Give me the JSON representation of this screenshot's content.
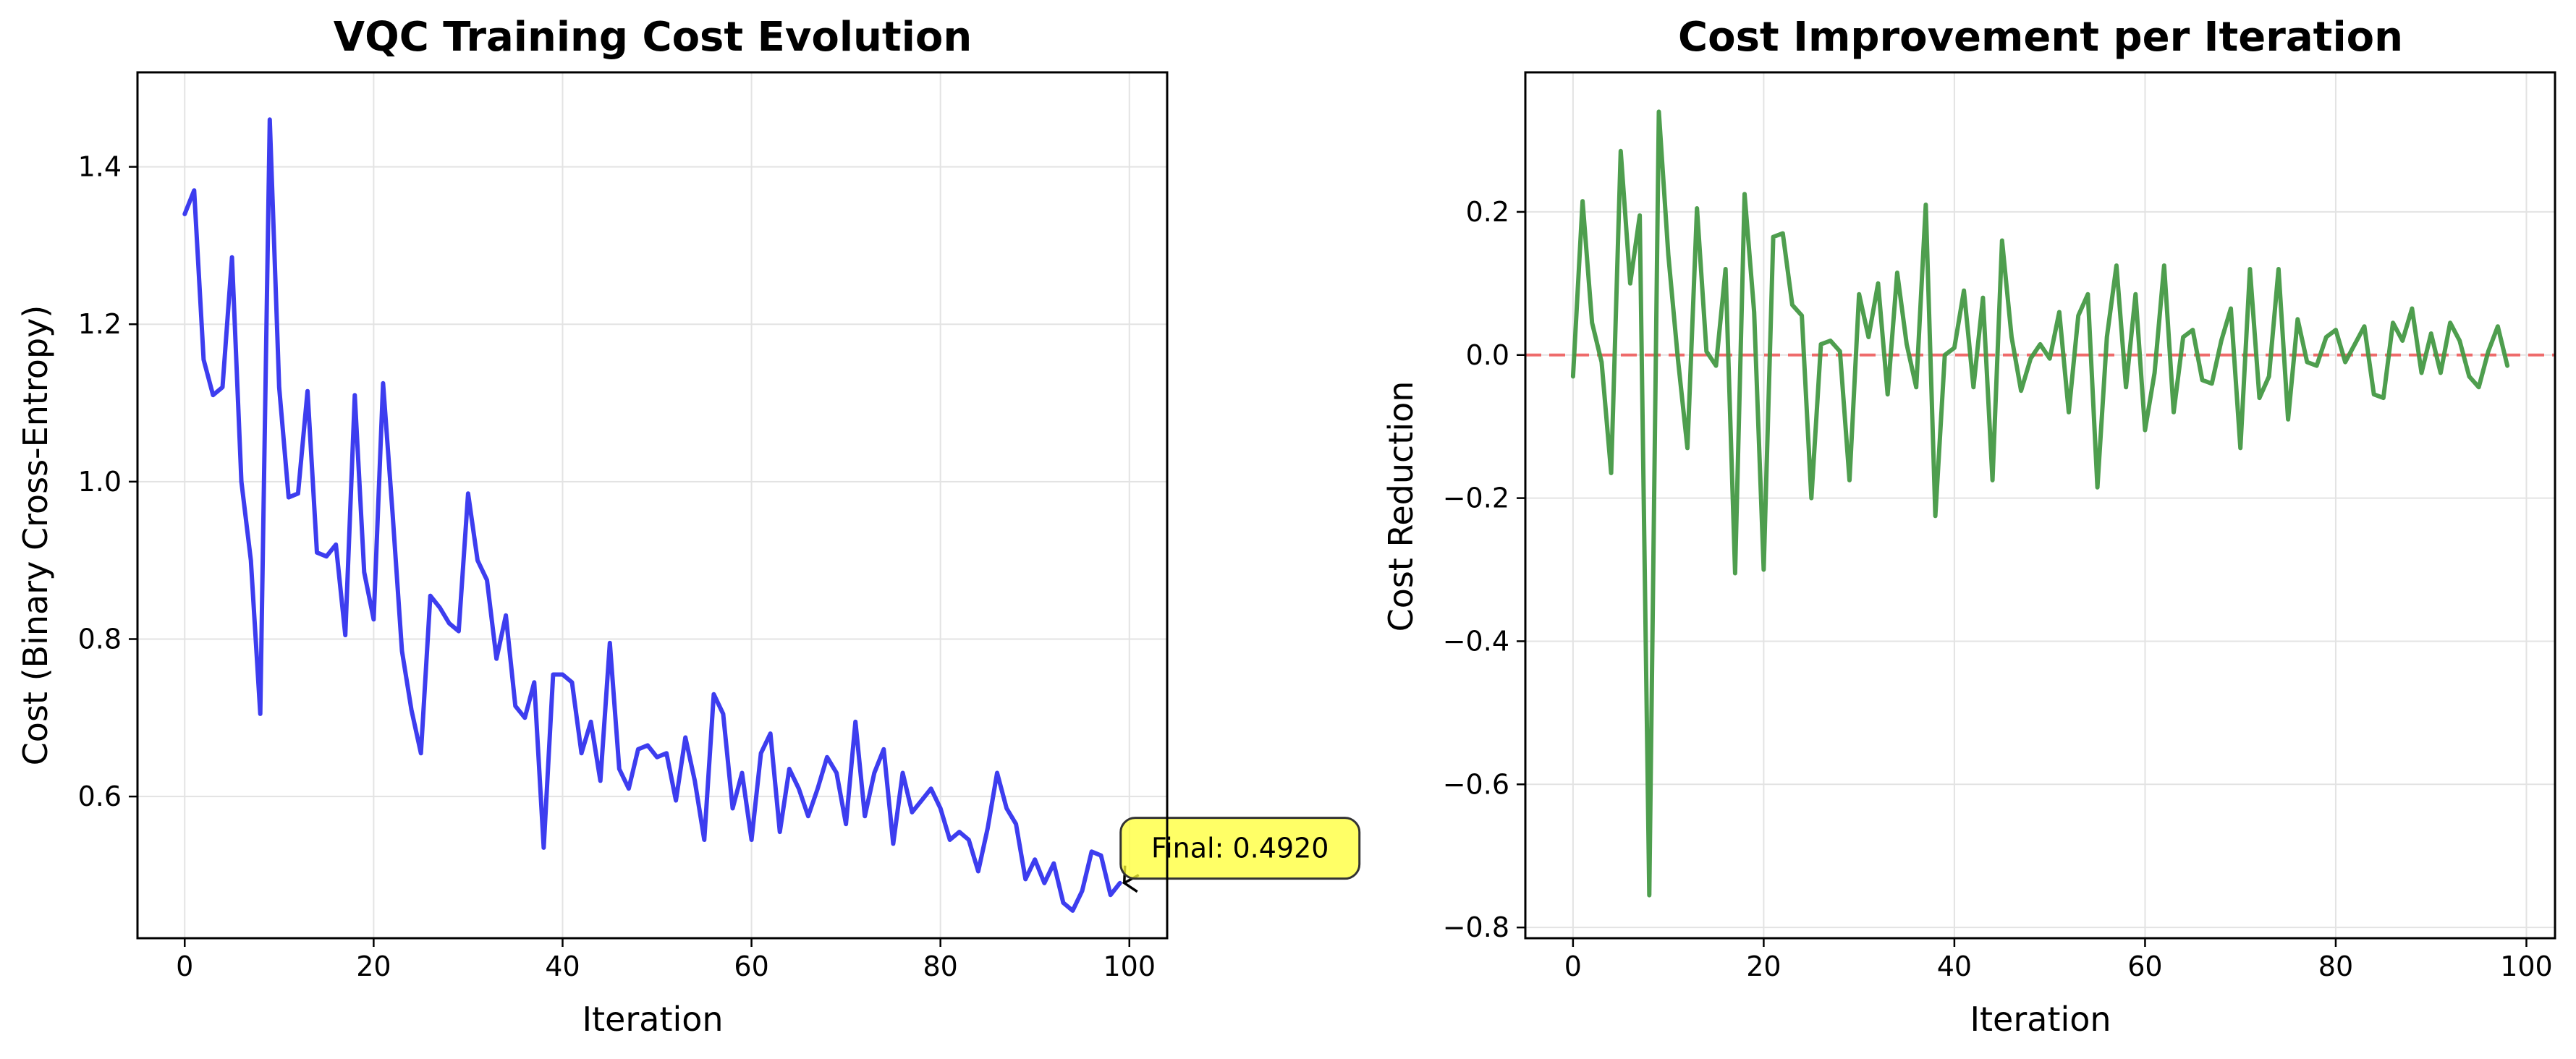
{
  "chart_data": [
    {
      "type": "line",
      "title": "VQC Training Cost Evolution",
      "xlabel": "Iteration",
      "ylabel": "Cost (Binary Cross-Entropy)",
      "xlim": [
        -5,
        104
      ],
      "ylim": [
        0.42,
        1.52
      ],
      "xticks": [
        0,
        20,
        40,
        60,
        80,
        100
      ],
      "yticks": [
        0.6,
        0.8,
        1.0,
        1.2,
        1.4
      ],
      "xtick_labels": [
        "0",
        "20",
        "40",
        "60",
        "80",
        "100"
      ],
      "ytick_labels": [
        "0.6",
        "0.8",
        "1.0",
        "1.2",
        "1.4"
      ],
      "grid": true,
      "series": [
        {
          "color": "#3333ee",
          "x": [
            0,
            1,
            2,
            3,
            4,
            5,
            6,
            7,
            8,
            9,
            10,
            11,
            12,
            13,
            14,
            15,
            16,
            17,
            18,
            19,
            20,
            21,
            22,
            23,
            24,
            25,
            26,
            27,
            28,
            29,
            30,
            31,
            32,
            33,
            34,
            35,
            36,
            37,
            38,
            39,
            40,
            41,
            42,
            43,
            44,
            45,
            46,
            47,
            48,
            49,
            50,
            51,
            52,
            53,
            54,
            55,
            56,
            57,
            58,
            59,
            60,
            61,
            62,
            63,
            64,
            65,
            66,
            67,
            68,
            69,
            70,
            71,
            72,
            73,
            74,
            75,
            76,
            77,
            78,
            79,
            80,
            81,
            82,
            83,
            84,
            85,
            86,
            87,
            88,
            89,
            90,
            91,
            92,
            93,
            94,
            95,
            96,
            97,
            98,
            99
          ],
          "values": [
            1.34,
            1.37,
            1.155,
            1.11,
            1.12,
            1.285,
            1.0,
            0.9,
            0.705,
            1.46,
            1.12,
            0.98,
            0.985,
            1.115,
            0.91,
            0.905,
            0.92,
            0.805,
            1.11,
            0.885,
            0.825,
            1.125,
            0.96,
            0.785,
            0.71,
            0.655,
            0.855,
            0.84,
            0.82,
            0.81,
            0.985,
            0.9,
            0.875,
            0.775,
            0.83,
            0.715,
            0.7,
            0.745,
            0.535,
            0.755,
            0.755,
            0.745,
            0.655,
            0.695,
            0.62,
            0.795,
            0.635,
            0.61,
            0.66,
            0.665,
            0.65,
            0.655,
            0.595,
            0.675,
            0.62,
            0.545,
            0.73,
            0.705,
            0.585,
            0.63,
            0.545,
            0.655,
            0.68,
            0.555,
            0.635,
            0.61,
            0.575,
            0.61,
            0.65,
            0.63,
            0.565,
            0.695,
            0.575,
            0.63,
            0.66,
            0.54,
            0.63,
            0.58,
            0.595,
            0.61,
            0.585,
            0.545,
            0.555,
            0.545,
            0.505,
            0.56,
            0.63,
            0.585,
            0.565,
            0.495,
            0.52,
            0.49,
            0.515,
            0.465,
            0.455,
            0.48,
            0.53,
            0.525,
            0.475,
            0.49
          ]
        }
      ],
      "annotation": {
        "text": "Final: 0.4920",
        "x": 99,
        "y": 0.492,
        "box_color": "#ffff33"
      }
    },
    {
      "type": "line",
      "title": "Cost Improvement per Iteration",
      "xlabel": "Iteration",
      "ylabel": "Cost Reduction",
      "xlim": [
        -5,
        103
      ],
      "ylim": [
        -0.815,
        0.395
      ],
      "xticks": [
        0,
        20,
        40,
        60,
        80,
        100
      ],
      "yticks": [
        -0.8,
        -0.6,
        -0.4,
        -0.2,
        0.0,
        0.2
      ],
      "xtick_labels": [
        "0",
        "20",
        "40",
        "60",
        "80",
        "100"
      ],
      "ytick_labels": [
        "−0.8",
        "−0.6",
        "−0.4",
        "−0.2",
        "0.0",
        "0.2"
      ],
      "grid": true,
      "reference_line": {
        "y": 0,
        "color": "#ee5555",
        "style": "dashed"
      },
      "series": [
        {
          "color": "#449944",
          "x": [
            0,
            1,
            2,
            3,
            4,
            5,
            6,
            7,
            8,
            9,
            10,
            11,
            12,
            13,
            14,
            15,
            16,
            17,
            18,
            19,
            20,
            21,
            22,
            23,
            24,
            25,
            26,
            27,
            28,
            29,
            30,
            31,
            32,
            33,
            34,
            35,
            36,
            37,
            38,
            39,
            40,
            41,
            42,
            43,
            44,
            45,
            46,
            47,
            48,
            49,
            50,
            51,
            52,
            53,
            54,
            55,
            56,
            57,
            58,
            59,
            60,
            61,
            62,
            63,
            64,
            65,
            66,
            67,
            68,
            69,
            70,
            71,
            72,
            73,
            74,
            75,
            76,
            77,
            78,
            79,
            80,
            81,
            82,
            83,
            84,
            85,
            86,
            87,
            88,
            89,
            90,
            91,
            92,
            93,
            94,
            95,
            96,
            97,
            98
          ],
          "values": [
            -0.03,
            0.215,
            0.045,
            -0.01,
            -0.165,
            0.285,
            0.1,
            0.195,
            -0.755,
            0.34,
            0.14,
            -0.005,
            -0.13,
            0.205,
            0.005,
            -0.015,
            0.12,
            -0.305,
            0.225,
            0.06,
            -0.3,
            0.165,
            0.17,
            0.07,
            0.055,
            -0.2,
            0.015,
            0.02,
            0.005,
            -0.175,
            0.085,
            0.025,
            0.1,
            -0.055,
            0.115,
            0.015,
            -0.045,
            0.21,
            -0.225,
            0.0,
            0.01,
            0.09,
            -0.045,
            0.08,
            -0.175,
            0.16,
            0.025,
            -0.05,
            -0.005,
            0.015,
            -0.005,
            0.06,
            -0.08,
            0.055,
            0.085,
            -0.185,
            0.025,
            0.125,
            -0.045,
            0.085,
            -0.105,
            -0.025,
            0.125,
            -0.08,
            0.025,
            0.035,
            -0.035,
            -0.04,
            0.02,
            0.065,
            -0.13,
            0.12,
            -0.06,
            -0.03,
            0.12,
            -0.09,
            0.05,
            -0.01,
            -0.015,
            0.025,
            0.035,
            -0.01,
            0.015,
            0.04,
            -0.055,
            -0.06,
            0.045,
            0.02,
            0.065,
            -0.025,
            0.03,
            -0.025,
            0.045,
            0.02,
            -0.03,
            -0.045,
            0.005,
            0.04,
            -0.015
          ]
        }
      ]
    }
  ]
}
